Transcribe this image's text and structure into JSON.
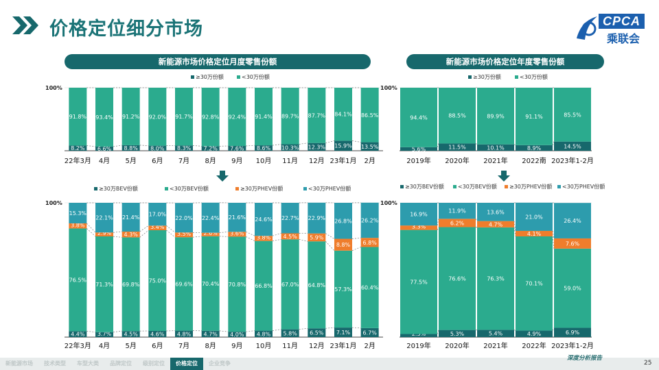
{
  "header": {
    "title": "价格定位细分市场",
    "logo_text": "CPCA",
    "logo_cn": "乘联会"
  },
  "sections": {
    "left_title": "新能源市场价格定位月度零售份额",
    "right_title": "新能源市场价格定位年度零售份额"
  },
  "colors": {
    "dark": "#17686c",
    "teal": "#2bab8e",
    "orange": "#ef7d2c",
    "blue": "#2d9cad",
    "label_dark": "#ffffff"
  },
  "chart_data": [
    {
      "type": "bar",
      "stacked": true,
      "title": "新能源市场价格定位月度零售份额",
      "ytick": "100%",
      "categories": [
        "22年3月",
        "4月",
        "5月",
        "6月",
        "7月",
        "8月",
        "9月",
        "10月",
        "11月",
        "12月",
        "23年1月",
        "2月"
      ],
      "series": [
        {
          "name": "≥30万份额",
          "values": [
            8.2,
            6.6,
            8.8,
            8.0,
            8.3,
            7.2,
            7.6,
            8.6,
            10.3,
            12.3,
            15.9,
            13.5
          ]
        },
        {
          "name": "<30万份额",
          "values": [
            91.8,
            93.4,
            91.2,
            92.0,
            91.7,
            92.8,
            92.4,
            91.4,
            89.7,
            87.7,
            84.1,
            86.5
          ]
        }
      ]
    },
    {
      "type": "bar",
      "stacked": true,
      "title": "新能源市场价格定位年度零售份额",
      "ytick": "100%",
      "categories": [
        "2019年",
        "2020年",
        "2021年",
        "2022南",
        "2023年1-2月"
      ],
      "series": [
        {
          "name": "≥30万份额",
          "values": [
            5.6,
            11.5,
            10.1,
            8.9,
            14.5
          ]
        },
        {
          "name": "<30万份额",
          "values": [
            94.4,
            88.5,
            89.9,
            91.1,
            85.5
          ]
        }
      ]
    },
    {
      "type": "bar",
      "stacked": true,
      "ytick": "100%",
      "categories": [
        "22年3月",
        "4月",
        "5月",
        "6月",
        "7月",
        "8月",
        "9月",
        "10月",
        "11月",
        "12月",
        "23年1月",
        "2月"
      ],
      "series": [
        {
          "name": "≥30万BEV份额",
          "values": [
            4.4,
            3.7,
            4.5,
            4.6,
            4.8,
            4.7,
            4.0,
            4.8,
            5.8,
            6.5,
            7.1,
            6.7
          ]
        },
        {
          "name": "<30万BEV份额",
          "values": [
            76.5,
            71.3,
            69.8,
            75.0,
            69.6,
            70.4,
            70.8,
            66.8,
            67.0,
            64.8,
            57.3,
            60.4
          ]
        },
        {
          "name": "≥30万PHEV份额",
          "values": [
            3.8,
            2.9,
            4.3,
            3.4,
            3.5,
            2.6,
            3.6,
            3.8,
            4.5,
            5.9,
            8.8,
            6.8
          ]
        },
        {
          "name": "<30万PHEV份额",
          "values": [
            15.3,
            22.1,
            21.4,
            17.0,
            22.0,
            22.4,
            21.6,
            24.6,
            22.7,
            22.9,
            26.8,
            26.2
          ]
        }
      ]
    },
    {
      "type": "bar",
      "stacked": true,
      "ytick": "100%",
      "categories": [
        "2019年",
        "2020年",
        "2021年",
        "2022年",
        "2023年1-2月"
      ],
      "series": [
        {
          "name": "≥30万BEV份额",
          "values": [
            2.3,
            5.3,
            5.4,
            4.9,
            6.9
          ]
        },
        {
          "name": "<30万BEV份额",
          "values": [
            77.5,
            76.6,
            76.3,
            70.1,
            59.0
          ]
        },
        {
          "name": "≥30万PHEV份额",
          "values": [
            3.3,
            6.2,
            4.7,
            4.1,
            7.6
          ]
        },
        {
          "name": "<30万PHEV份额",
          "values": [
            16.9,
            11.9,
            13.6,
            21.0,
            26.4
          ]
        }
      ]
    }
  ],
  "nav": {
    "items": [
      "新能源市场",
      "技术类型",
      "车型大类",
      "品牌定位",
      "级别定位",
      "价格定位",
      "企业竞争"
    ],
    "active": 5
  },
  "footer": {
    "tag": "深度分析报告",
    "page": "25"
  }
}
